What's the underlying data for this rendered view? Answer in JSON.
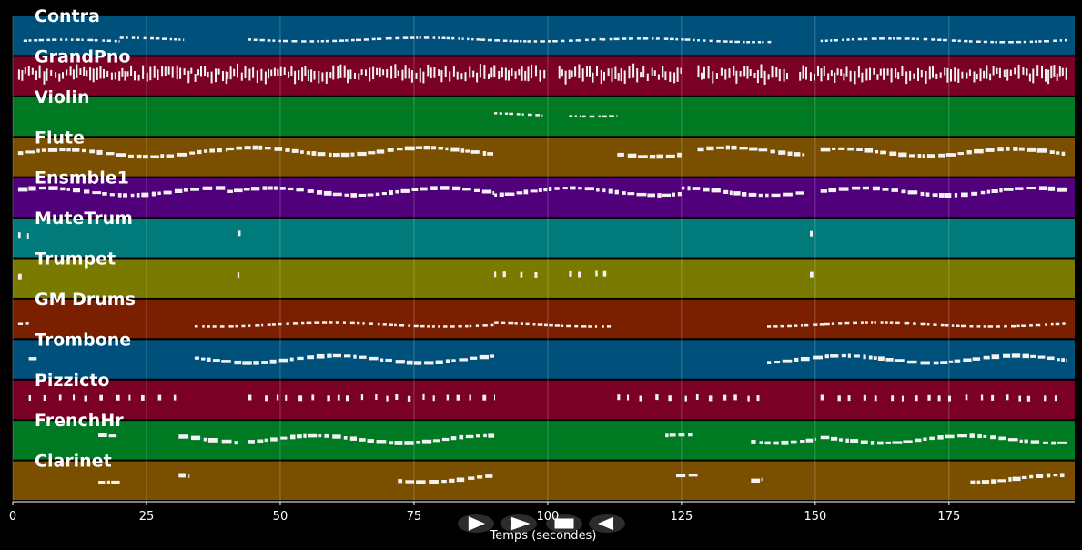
{
  "tracks": [
    {
      "name": "Contra",
      "color": "#00507c",
      "pattern": "sparse-line",
      "notes": [
        [
          2,
          20,
          0.65
        ],
        [
          20,
          32,
          0.6
        ],
        [
          44,
          110,
          0.6
        ],
        [
          110,
          142,
          0.62
        ],
        [
          151,
          197,
          0.62
        ]
      ]
    },
    {
      "name": "GrandPno",
      "color": "#7a0026",
      "pattern": "dense",
      "notes": [
        [
          1,
          40,
          0.45
        ],
        [
          40,
          100,
          0.45
        ],
        [
          102,
          125,
          0.45
        ],
        [
          128,
          145,
          0.45
        ],
        [
          147,
          197,
          0.45
        ]
      ]
    },
    {
      "name": "Violin",
      "color": "#007a22",
      "pattern": "sparse-line",
      "notes": [
        [
          90,
          99,
          0.45
        ],
        [
          104,
          113,
          0.45
        ]
      ]
    },
    {
      "name": "Flute",
      "color": "#7a5000",
      "pattern": "line",
      "notes": [
        [
          1,
          40,
          0.4
        ],
        [
          40,
          90,
          0.35
        ],
        [
          113,
          125,
          0.4
        ],
        [
          128,
          148,
          0.35
        ],
        [
          151,
          197,
          0.38
        ]
      ]
    },
    {
      "name": "Ensmble1",
      "color": "#50007a",
      "pattern": "line",
      "notes": [
        [
          1,
          40,
          0.35
        ],
        [
          40,
          90,
          0.35
        ],
        [
          90,
          125,
          0.35
        ],
        [
          125,
          148,
          0.35
        ],
        [
          151,
          197,
          0.35
        ]
      ]
    },
    {
      "name": "MuteTrum",
      "color": "#007a7a",
      "pattern": "dots",
      "notes": [
        [
          1,
          3,
          0.45
        ],
        [
          42,
          43.5,
          0.4
        ],
        [
          149,
          151,
          0.4
        ]
      ]
    },
    {
      "name": "Trumpet",
      "color": "#7a7a00",
      "pattern": "dots",
      "notes": [
        [
          1,
          3,
          0.45
        ],
        [
          42,
          43.5,
          0.4
        ],
        [
          90,
          99,
          0.4
        ],
        [
          104,
          112,
          0.4
        ],
        [
          149,
          151,
          0.4
        ]
      ]
    },
    {
      "name": "GM Drums",
      "color": "#7a2000",
      "pattern": "sparse-line",
      "notes": [
        [
          1,
          3,
          0.65
        ],
        [
          34,
          90,
          0.65
        ],
        [
          90,
          112,
          0.65
        ],
        [
          141,
          197,
          0.65
        ]
      ]
    },
    {
      "name": "Trombone",
      "color": "#00507c",
      "pattern": "line",
      "notes": [
        [
          3,
          5,
          0.5
        ],
        [
          34,
          90,
          0.5
        ],
        [
          141,
          197,
          0.5
        ]
      ]
    },
    {
      "name": "Pizzicto",
      "color": "#7a0026",
      "pattern": "dots",
      "notes": [
        [
          3,
          32,
          0.45
        ],
        [
          44,
          90,
          0.45
        ],
        [
          113,
          140,
          0.45
        ],
        [
          151,
          197,
          0.45
        ]
      ]
    },
    {
      "name": "FrenchHr",
      "color": "#007a22",
      "pattern": "line",
      "notes": [
        [
          16,
          20,
          0.45
        ],
        [
          31,
          42,
          0.48
        ],
        [
          44,
          90,
          0.48
        ],
        [
          122,
          127,
          0.45
        ],
        [
          138,
          150,
          0.48
        ],
        [
          151,
          197,
          0.48
        ]
      ]
    },
    {
      "name": "Clarinet",
      "color": "#7a5000",
      "pattern": "line",
      "notes": [
        [
          16,
          20,
          0.45
        ],
        [
          31,
          33,
          0.45
        ],
        [
          72,
          90,
          0.45
        ],
        [
          124,
          128,
          0.45
        ],
        [
          138,
          140,
          0.45
        ],
        [
          179,
          197,
          0.45
        ]
      ]
    }
  ],
  "axis": {
    "xmin": 0,
    "xmax": 198.5,
    "ticks": [
      0,
      25,
      50,
      75,
      100,
      125,
      150,
      175
    ],
    "label": "Temps (secondes)"
  },
  "controls": [
    {
      "name": "play-icon",
      "glyph": "play"
    },
    {
      "name": "forward-icon",
      "glyph": "forward"
    },
    {
      "name": "stop-icon",
      "glyph": "stop"
    },
    {
      "name": "back-icon",
      "glyph": "back"
    }
  ]
}
